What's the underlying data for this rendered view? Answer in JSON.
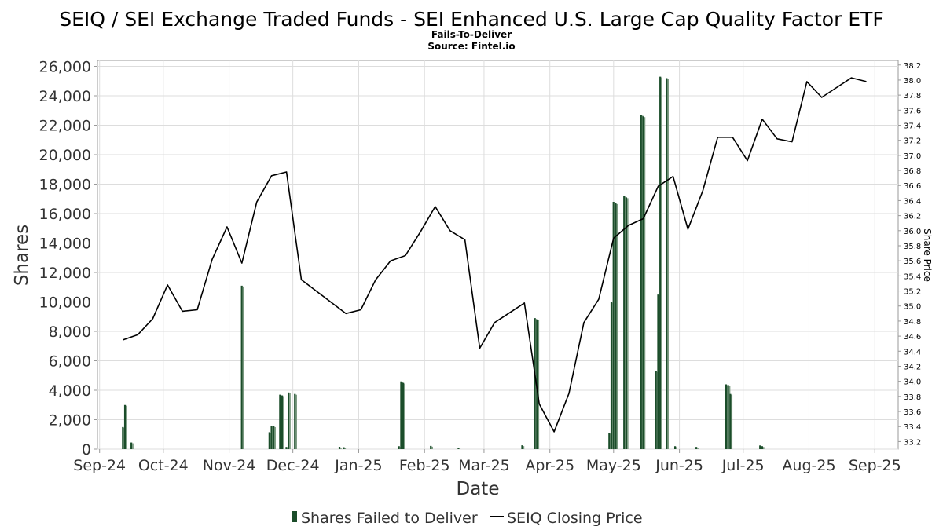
{
  "chart_data": {
    "type": "bar+line",
    "title": "SEIQ / SEI Exchange Traded Funds - SEI Enhanced U.S. Large Cap Quality Factor ETF",
    "subtitle": "Fails-To-Deliver",
    "source": "Source: Fintel.io",
    "xlabel": "Date",
    "ylabel": "Shares",
    "y2label": "Share Price",
    "xlim": [
      "2024-09-14",
      "2025-09-26"
    ],
    "ylim": [
      0,
      26400
    ],
    "y2lim": [
      33.1,
      38.26
    ],
    "x_ticks": [
      {
        "label": "Sep-24",
        "date": "2024-09-15"
      },
      {
        "label": "Oct-24",
        "date": "2024-10-15"
      },
      {
        "label": "Nov-24",
        "date": "2024-11-15"
      },
      {
        "label": "Dec-24",
        "date": "2024-12-15"
      },
      {
        "label": "Jan-25",
        "date": "2025-01-15"
      },
      {
        "label": "Feb-25",
        "date": "2025-02-15"
      },
      {
        "label": "Mar-25",
        "date": "2025-03-15"
      },
      {
        "label": "Apr-25",
        "date": "2025-04-15"
      },
      {
        "label": "May-25",
        "date": "2025-05-15"
      },
      {
        "label": "Jun-25",
        "date": "2025-06-15"
      },
      {
        "label": "Jul-25",
        "date": "2025-07-15"
      },
      {
        "label": "Aug-25",
        "date": "2025-08-15"
      },
      {
        "label": "Sep-25",
        "date": "2025-09-15"
      }
    ],
    "y_ticks": [
      "0",
      "2,000",
      "4,000",
      "6,000",
      "8,000",
      "10,000",
      "12,000",
      "14,000",
      "16,000",
      "18,000",
      "20,000",
      "22,000",
      "24,000",
      "26,000"
    ],
    "y_tick_values": [
      0,
      2000,
      4000,
      6000,
      8000,
      10000,
      12000,
      14000,
      16000,
      18000,
      20000,
      22000,
      24000,
      26000
    ],
    "y2_ticks": [
      "33.2",
      "33.4",
      "33.6",
      "33.8",
      "34.0",
      "34.2",
      "34.4",
      "34.6",
      "34.8",
      "35.0",
      "35.2",
      "35.4",
      "35.6",
      "35.8",
      "36.0",
      "36.2",
      "36.4",
      "36.6",
      "36.8",
      "37.0",
      "37.2",
      "37.4",
      "37.6",
      "37.8",
      "38.0",
      "38.2"
    ],
    "y2_tick_values": [
      33.2,
      33.4,
      33.6,
      33.8,
      34.0,
      34.2,
      34.4,
      34.6,
      34.8,
      35.0,
      35.2,
      35.4,
      35.6,
      35.8,
      36.0,
      36.2,
      36.4,
      36.6,
      36.8,
      37.0,
      37.2,
      37.4,
      37.6,
      37.8,
      38.0,
      38.2
    ],
    "grid": true,
    "legend_position": "bottom-center",
    "series": [
      {
        "name": "Shares Failed to Deliver",
        "type": "bar",
        "color": "#1b4d2a",
        "data": [
          {
            "date": "2024-09-26",
            "value": 1500
          },
          {
            "date": "2024-09-27",
            "value": 3000
          },
          {
            "date": "2024-09-30",
            "value": 450
          },
          {
            "date": "2024-11-21",
            "value": 11100
          },
          {
            "date": "2024-12-04",
            "value": 1150
          },
          {
            "date": "2024-12-05",
            "value": 1600
          },
          {
            "date": "2024-12-06",
            "value": 1550
          },
          {
            "date": "2024-12-09",
            "value": 3700
          },
          {
            "date": "2024-12-10",
            "value": 3650
          },
          {
            "date": "2024-12-12",
            "value": 150
          },
          {
            "date": "2024-12-13",
            "value": 3850
          },
          {
            "date": "2024-12-16",
            "value": 3750
          },
          {
            "date": "2025-01-06",
            "value": 160
          },
          {
            "date": "2025-01-08",
            "value": 130
          },
          {
            "date": "2025-02-03",
            "value": 200
          },
          {
            "date": "2025-02-04",
            "value": 4600
          },
          {
            "date": "2025-02-05",
            "value": 4500
          },
          {
            "date": "2025-02-18",
            "value": 220
          },
          {
            "date": "2025-03-03",
            "value": 80
          },
          {
            "date": "2025-04-02",
            "value": 260
          },
          {
            "date": "2025-04-08",
            "value": 8900
          },
          {
            "date": "2025-04-09",
            "value": 8800
          },
          {
            "date": "2025-05-13",
            "value": 1100
          },
          {
            "date": "2025-05-14",
            "value": 10000
          },
          {
            "date": "2025-05-15",
            "value": 16800
          },
          {
            "date": "2025-05-16",
            "value": 16700
          },
          {
            "date": "2025-05-20",
            "value": 17200
          },
          {
            "date": "2025-05-21",
            "value": 17100
          },
          {
            "date": "2025-05-28",
            "value": 22700
          },
          {
            "date": "2025-05-29",
            "value": 22600
          },
          {
            "date": "2025-06-04",
            "value": 5300
          },
          {
            "date": "2025-06-05",
            "value": 10500
          },
          {
            "date": "2025-06-06",
            "value": 25300
          },
          {
            "date": "2025-06-09",
            "value": 25200
          },
          {
            "date": "2025-06-13",
            "value": 200
          },
          {
            "date": "2025-06-23",
            "value": 150
          },
          {
            "date": "2025-07-07",
            "value": 4400
          },
          {
            "date": "2025-07-08",
            "value": 4350
          },
          {
            "date": "2025-07-09",
            "value": 3750
          },
          {
            "date": "2025-07-23",
            "value": 250
          },
          {
            "date": "2025-07-24",
            "value": 200
          }
        ]
      },
      {
        "name": "SEIQ Closing Price",
        "type": "line",
        "color": "#000000",
        "data": [
          {
            "date": "2024-09-26",
            "value": 34.55
          },
          {
            "date": "2024-10-03",
            "value": 34.62
          },
          {
            "date": "2024-10-10",
            "value": 34.83
          },
          {
            "date": "2024-10-17",
            "value": 35.28
          },
          {
            "date": "2024-10-24",
            "value": 34.93
          },
          {
            "date": "2024-10-31",
            "value": 34.95
          },
          {
            "date": "2024-11-07",
            "value": 35.62
          },
          {
            "date": "2024-11-14",
            "value": 36.05
          },
          {
            "date": "2024-11-21",
            "value": 35.57
          },
          {
            "date": "2024-11-28",
            "value": 36.38
          },
          {
            "date": "2024-12-05",
            "value": 36.73
          },
          {
            "date": "2024-12-12",
            "value": 36.78
          },
          {
            "date": "2024-12-19",
            "value": 35.35
          },
          {
            "date": "2025-01-09",
            "value": 34.9
          },
          {
            "date": "2025-01-16",
            "value": 34.95
          },
          {
            "date": "2025-01-23",
            "value": 35.35
          },
          {
            "date": "2025-01-30",
            "value": 35.6
          },
          {
            "date": "2025-02-06",
            "value": 35.67
          },
          {
            "date": "2025-02-13",
            "value": 35.98
          },
          {
            "date": "2025-02-20",
            "value": 36.32
          },
          {
            "date": "2025-02-27",
            "value": 36.0
          },
          {
            "date": "2025-03-06",
            "value": 35.88
          },
          {
            "date": "2025-03-13",
            "value": 34.44
          },
          {
            "date": "2025-03-20",
            "value": 34.78
          },
          {
            "date": "2025-04-03",
            "value": 35.04
          },
          {
            "date": "2025-04-10",
            "value": 33.7
          },
          {
            "date": "2025-04-17",
            "value": 33.33
          },
          {
            "date": "2025-04-24",
            "value": 33.84
          },
          {
            "date": "2025-05-01",
            "value": 34.78
          },
          {
            "date": "2025-05-08",
            "value": 35.09
          },
          {
            "date": "2025-05-15",
            "value": 35.9
          },
          {
            "date": "2025-05-22",
            "value": 36.07
          },
          {
            "date": "2025-05-29",
            "value": 36.16
          },
          {
            "date": "2025-06-05",
            "value": 36.59
          },
          {
            "date": "2025-06-12",
            "value": 36.72
          },
          {
            "date": "2025-06-19",
            "value": 36.02
          },
          {
            "date": "2025-06-26",
            "value": 36.53
          },
          {
            "date": "2025-07-03",
            "value": 37.24
          },
          {
            "date": "2025-07-10",
            "value": 37.24
          },
          {
            "date": "2025-07-17",
            "value": 36.93
          },
          {
            "date": "2025-07-24",
            "value": 37.48
          },
          {
            "date": "2025-07-31",
            "value": 37.22
          },
          {
            "date": "2025-08-07",
            "value": 37.18
          },
          {
            "date": "2025-08-14",
            "value": 37.98
          },
          {
            "date": "2025-08-21",
            "value": 37.77
          },
          {
            "date": "2025-08-28",
            "value": 37.9
          },
          {
            "date": "2025-09-04",
            "value": 38.03
          },
          {
            "date": "2025-09-11",
            "value": 37.98
          }
        ]
      }
    ]
  }
}
